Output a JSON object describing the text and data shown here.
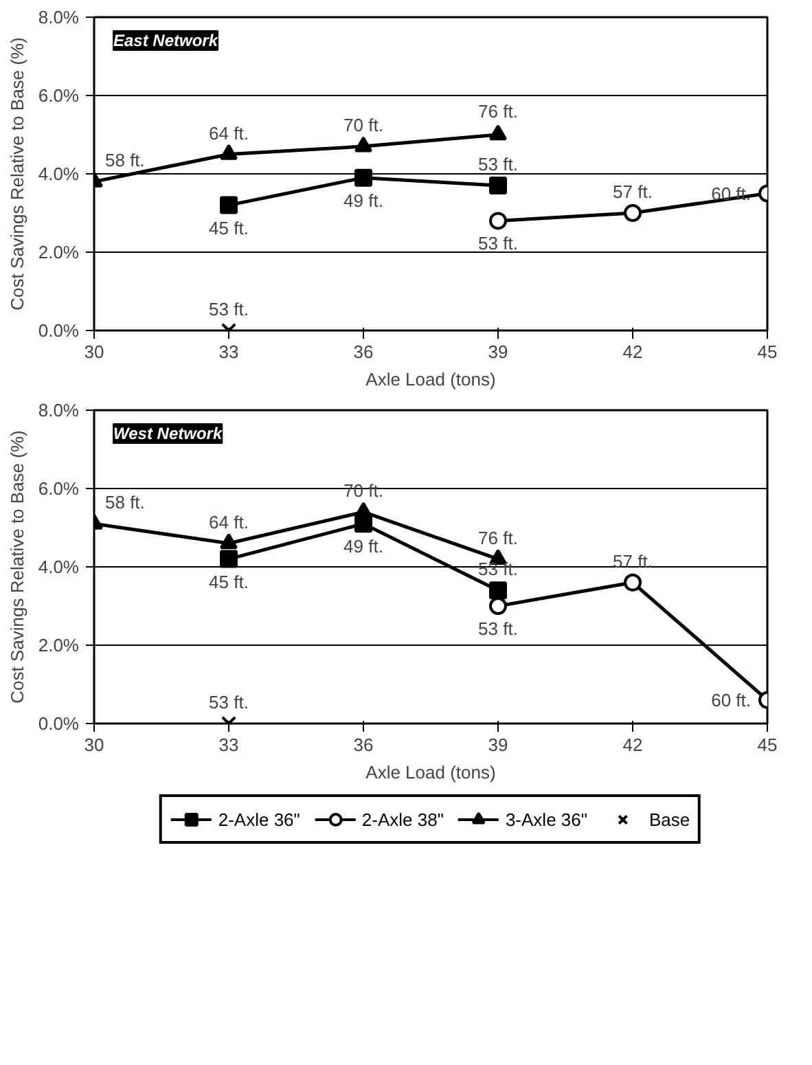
{
  "chart_data": [
    {
      "type": "line",
      "title": "East Network",
      "xlabel": "Axle Load (tons)",
      "ylabel": "Cost Savings Relative to Base (%)",
      "xlim": [
        30,
        45
      ],
      "xticks": [
        30,
        33,
        36,
        39,
        42,
        45
      ],
      "ylim": [
        0,
        8
      ],
      "yticks": [
        {
          "value": 0,
          "label": "0.0%"
        },
        {
          "value": 2,
          "label": "2.0%"
        },
        {
          "value": 4,
          "label": "4.0%"
        },
        {
          "value": 6,
          "label": "6.0%"
        },
        {
          "value": 8,
          "label": "8.0%"
        }
      ],
      "grid": "y",
      "legend": false,
      "line_style": "solid",
      "series": [
        {
          "color": "#000000",
          "marker": "square",
          "x": [
            33,
            36,
            39
          ],
          "values": [
            3.2,
            3.9,
            3.7
          ]
        },
        {
          "color": "#000000",
          "marker": "circle",
          "x": [
            39,
            42,
            45
          ],
          "values": [
            2.8,
            3.0,
            3.5
          ]
        },
        {
          "color": "#000000",
          "marker": "triangle",
          "x": [
            30,
            33,
            36,
            39
          ],
          "values": [
            3.8,
            4.5,
            4.7,
            5.0
          ]
        },
        {
          "type": "scatter",
          "color": "#000000",
          "marker": "cross",
          "x": [
            33
          ],
          "values": [
            0
          ]
        }
      ],
      "annotations": [
        {
          "text": "58 ft.",
          "x": 30,
          "y": 3.8
        },
        {
          "text": "64 ft.",
          "x": 33,
          "y": 4.5
        },
        {
          "text": "70 ft.",
          "x": 36,
          "y": 4.7
        },
        {
          "text": "76 ft.",
          "x": 39,
          "y": 5.05
        },
        {
          "text": "45 ft.",
          "x": 33,
          "y": 3.2
        },
        {
          "text": "49 ft.",
          "x": 36,
          "y": 3.9
        },
        {
          "text": "53 ft.",
          "x": 39,
          "y": 3.7
        },
        {
          "text": "53 ft.",
          "x": 39,
          "y": 2.8
        },
        {
          "text": "57 ft.",
          "x": 42,
          "y": 3.0
        },
        {
          "text": "60 ft.",
          "x": 45,
          "y": 3.5
        },
        {
          "text": "53 ft.",
          "x": 33,
          "y": 0
        }
      ]
    },
    {
      "type": "line",
      "title": "West Network",
      "xlabel": "Axle Load (tons)",
      "ylabel": "Cost Savings Relative to Base (%)",
      "xlim": [
        30,
        45
      ],
      "xticks": [
        30,
        33,
        36,
        39,
        42,
        45
      ],
      "ylim": [
        0,
        8
      ],
      "yticks": [
        {
          "value": 0,
          "label": "0.0%"
        },
        {
          "value": 2,
          "label": "2.0%"
        },
        {
          "value": 4,
          "label": "4.0%"
        },
        {
          "value": 6,
          "label": "6.0%"
        },
        {
          "value": 8,
          "label": "8.0%"
        }
      ],
      "grid": "y",
      "legend": "bottom",
      "line_style": "solid",
      "series": [
        {
          "name": "2-Axle 36\"",
          "color": "#000000",
          "marker": "square",
          "x": [
            33,
            36,
            39
          ],
          "values": [
            4.2,
            5.1,
            3.4
          ]
        },
        {
          "name": "2-Axle 38\"",
          "color": "#000000",
          "marker": "circle",
          "x": [
            39,
            42,
            45
          ],
          "values": [
            3.0,
            3.6,
            0.6
          ]
        },
        {
          "name": "3-Axle 36\"",
          "color": "#000000",
          "marker": "triangle",
          "x": [
            30,
            33,
            36,
            39
          ],
          "values": [
            5.1,
            4.6,
            5.4,
            4.2
          ]
        },
        {
          "name": "Base",
          "type": "scatter",
          "color": "#000000",
          "marker": "cross",
          "x": [
            33
          ],
          "values": [
            0
          ]
        }
      ],
      "annotations": [
        {
          "text": "58 ft.",
          "x": 30,
          "y": 5.1
        },
        {
          "text": "64 ft.",
          "x": 33,
          "y": 4.6
        },
        {
          "text": "70 ft.",
          "x": 36,
          "y": 5.4
        },
        {
          "text": "76 ft.",
          "x": 39,
          "y": 4.2
        },
        {
          "text": "45 ft.",
          "x": 33,
          "y": 4.2
        },
        {
          "text": "49 ft.",
          "x": 36,
          "y": 5.1
        },
        {
          "text": "53 ft.",
          "x": 39,
          "y": 3.4
        },
        {
          "text": "53 ft.",
          "x": 39,
          "y": 3.0
        },
        {
          "text": "57 ft.",
          "x": 42,
          "y": 3.6
        },
        {
          "text": "60 ft.",
          "x": 45,
          "y": 0.6
        },
        {
          "text": "53 ft.",
          "x": 33,
          "y": 0
        }
      ]
    }
  ]
}
